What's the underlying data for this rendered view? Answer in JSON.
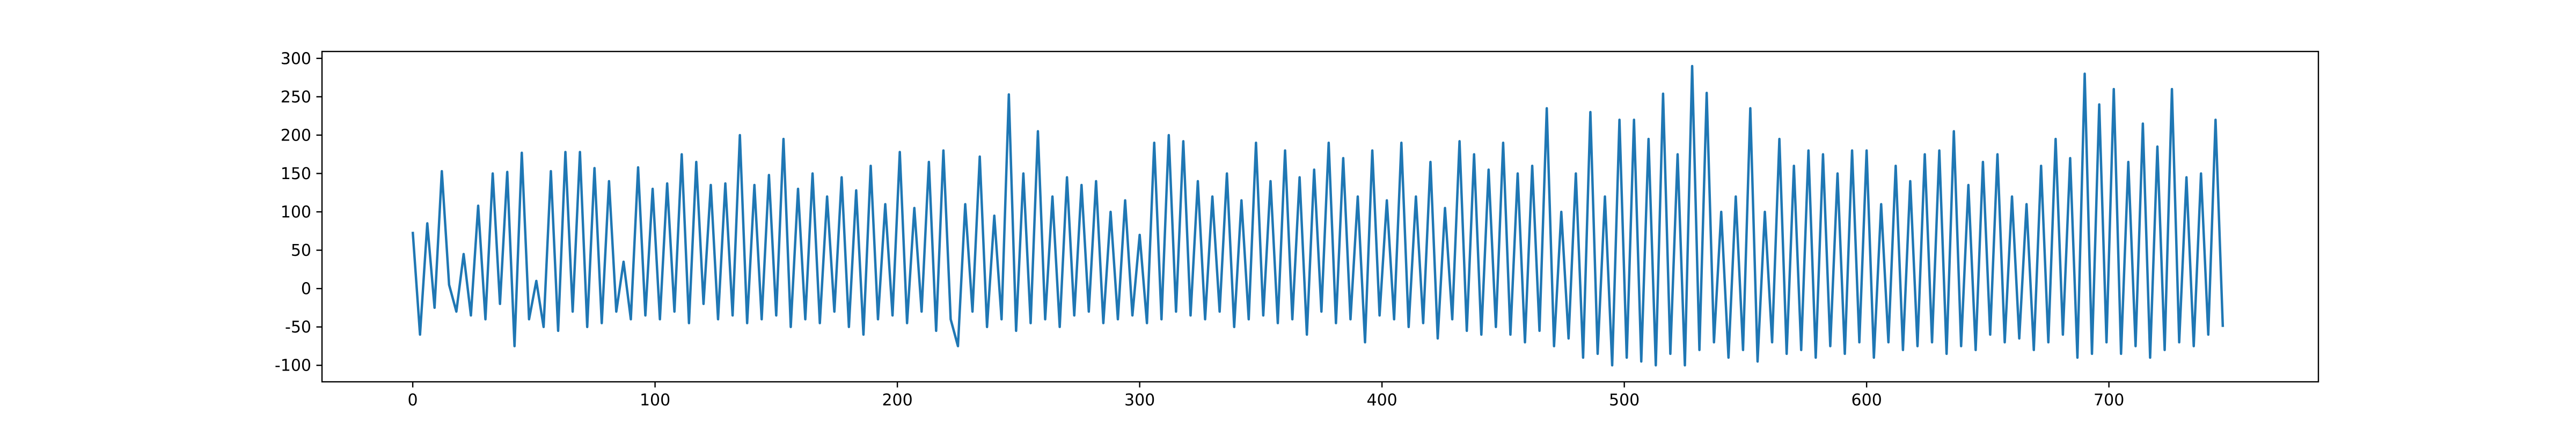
{
  "chart_data": {
    "type": "line",
    "x": [
      0,
      3,
      6,
      9,
      12,
      15,
      18,
      21,
      24,
      27,
      30,
      33,
      36,
      39,
      42,
      45,
      48,
      51,
      54,
      57,
      60,
      63,
      66,
      69,
      72,
      75,
      78,
      81,
      84,
      87,
      90,
      93,
      96,
      99,
      102,
      105,
      108,
      111,
      114,
      117,
      120,
      123,
      126,
      129,
      132,
      135,
      138,
      141,
      144,
      147,
      150,
      153,
      156,
      159,
      162,
      165,
      168,
      171,
      174,
      177,
      180,
      183,
      186,
      189,
      192,
      195,
      198,
      201,
      204,
      207,
      210,
      213,
      216,
      219,
      222,
      225,
      228,
      231,
      234,
      237,
      240,
      243,
      246,
      249,
      252,
      255,
      258,
      261,
      264,
      267,
      270,
      273,
      276,
      279,
      282,
      285,
      288,
      291,
      294,
      297,
      300,
      303,
      306,
      309,
      312,
      315,
      318,
      321,
      324,
      327,
      330,
      333,
      336,
      339,
      342,
      345,
      348,
      351,
      354,
      357,
      360,
      363,
      366,
      369,
      372,
      375,
      378,
      381,
      384,
      387,
      390,
      393,
      396,
      399,
      402,
      405,
      408,
      411,
      414,
      417,
      420,
      423,
      426,
      429,
      432,
      435,
      438,
      441,
      444,
      447,
      450,
      453,
      456,
      459,
      462,
      465,
      468,
      471,
      474,
      477,
      480,
      483,
      486,
      489,
      492,
      495,
      498,
      501,
      504,
      507,
      510,
      513,
      516,
      519,
      522,
      525,
      528,
      531,
      534,
      537,
      540,
      543,
      546,
      549,
      552,
      555,
      558,
      561,
      564,
      567,
      570,
      573,
      576,
      579,
      582,
      585,
      588,
      591,
      594,
      597,
      600,
      603,
      606,
      609,
      612,
      615,
      618,
      621,
      624,
      627,
      630,
      633,
      636,
      639,
      642,
      645,
      648,
      651,
      654,
      657,
      660,
      663,
      666,
      669,
      672,
      675,
      678,
      681,
      684,
      687,
      690,
      693,
      696,
      699,
      702,
      705,
      708,
      711,
      714,
      717,
      720,
      723,
      726,
      729,
      732,
      735,
      738,
      741,
      744,
      747
    ],
    "series": [
      {
        "color": "#1f77b4",
        "values": [
          74,
          -60,
          85,
          -25,
          153,
          5,
          -30,
          45,
          -35,
          108,
          -40,
          150,
          -20,
          152,
          -75,
          177,
          -40,
          10,
          -50,
          153,
          -55,
          178,
          -30,
          178,
          -50,
          157,
          -45,
          140,
          -30,
          35,
          -40,
          158,
          -35,
          130,
          -40,
          137,
          -30,
          175,
          -45,
          165,
          -20,
          135,
          -40,
          137,
          -35,
          200,
          -45,
          135,
          -40,
          148,
          -35,
          195,
          -50,
          130,
          -40,
          150,
          -45,
          120,
          -30,
          145,
          -50,
          128,
          -60,
          160,
          -40,
          110,
          -35,
          178,
          -45,
          105,
          -30,
          165,
          -55,
          180,
          -40,
          -75,
          110,
          -30,
          172,
          -50,
          95,
          -40,
          253,
          -55,
          150,
          -45,
          205,
          -40,
          120,
          -50,
          145,
          -35,
          135,
          -30,
          140,
          -45,
          100,
          -40,
          115,
          -35,
          70,
          -45,
          190,
          -40,
          200,
          -30,
          192,
          -35,
          140,
          -40,
          120,
          -30,
          150,
          -50,
          115,
          -40,
          190,
          -35,
          140,
          -45,
          180,
          -40,
          145,
          -60,
          155,
          -30,
          190,
          -45,
          170,
          -40,
          120,
          -70,
          180,
          -35,
          115,
          -40,
          190,
          -50,
          120,
          -45,
          165,
          -65,
          105,
          -40,
          192,
          -55,
          175,
          -60,
          155,
          -50,
          190,
          -60,
          150,
          -70,
          160,
          -55,
          235,
          -75,
          100,
          -65,
          150,
          -90,
          230,
          -85,
          120,
          -100,
          220,
          -90,
          220,
          -95,
          195,
          -100,
          254,
          -85,
          175,
          -100,
          290,
          -80,
          255,
          -70,
          100,
          -90,
          120,
          -80,
          235,
          -95,
          100,
          -70,
          195,
          -85,
          160,
          -80,
          180,
          -90,
          175,
          -75,
          150,
          -85,
          180,
          -70,
          180,
          -90,
          110,
          -70,
          160,
          -80,
          140,
          -75,
          175,
          -70,
          180,
          -85,
          205,
          -75,
          135,
          -80,
          165,
          -60,
          175,
          -70,
          120,
          -65,
          110,
          -80,
          160,
          -70,
          195,
          -60,
          170,
          -90,
          280,
          -85,
          240,
          -70,
          260,
          -85,
          165,
          -75,
          215,
          -90,
          185,
          -80,
          260,
          -70,
          145,
          -75,
          150,
          -60,
          220,
          -50
        ]
      }
    ],
    "xlim": [
      -37.45,
      786.45
    ],
    "xticks": [
      0,
      100,
      200,
      300,
      400,
      500,
      600,
      700
    ],
    "ylim": [
      -121.5,
      309
    ],
    "yticks": [
      -100,
      -50,
      0,
      50,
      100,
      150,
      200,
      250,
      300
    ]
  }
}
